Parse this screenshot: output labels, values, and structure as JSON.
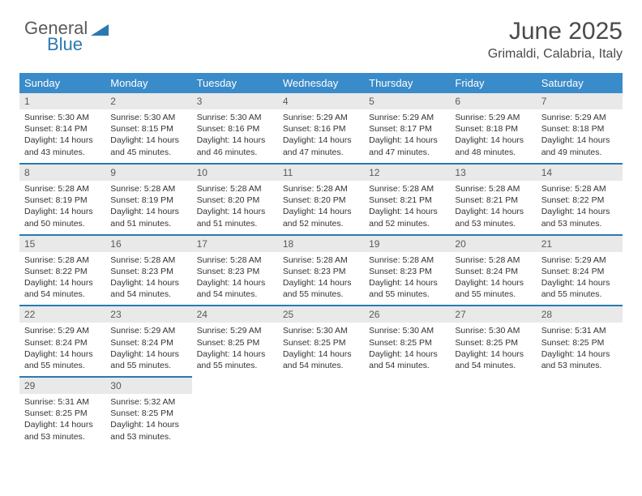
{
  "brand": {
    "part1": "General",
    "part2": "Blue"
  },
  "title": "June 2025",
  "location": "Grimaldi, Calabria, Italy",
  "colors": {
    "header_bg": "#3a8bc9",
    "accent": "#2a7ab0",
    "daynum_bg": "#e9e9e9",
    "text": "#333333"
  },
  "weekdays": [
    "Sunday",
    "Monday",
    "Tuesday",
    "Wednesday",
    "Thursday",
    "Friday",
    "Saturday"
  ],
  "weeks": [
    [
      {
        "n": "1",
        "sr": "5:30 AM",
        "ss": "8:14 PM",
        "dl": "14 hours and 43 minutes."
      },
      {
        "n": "2",
        "sr": "5:30 AM",
        "ss": "8:15 PM",
        "dl": "14 hours and 45 minutes."
      },
      {
        "n": "3",
        "sr": "5:30 AM",
        "ss": "8:16 PM",
        "dl": "14 hours and 46 minutes."
      },
      {
        "n": "4",
        "sr": "5:29 AM",
        "ss": "8:16 PM",
        "dl": "14 hours and 47 minutes."
      },
      {
        "n": "5",
        "sr": "5:29 AM",
        "ss": "8:17 PM",
        "dl": "14 hours and 47 minutes."
      },
      {
        "n": "6",
        "sr": "5:29 AM",
        "ss": "8:18 PM",
        "dl": "14 hours and 48 minutes."
      },
      {
        "n": "7",
        "sr": "5:29 AM",
        "ss": "8:18 PM",
        "dl": "14 hours and 49 minutes."
      }
    ],
    [
      {
        "n": "8",
        "sr": "5:28 AM",
        "ss": "8:19 PM",
        "dl": "14 hours and 50 minutes."
      },
      {
        "n": "9",
        "sr": "5:28 AM",
        "ss": "8:19 PM",
        "dl": "14 hours and 51 minutes."
      },
      {
        "n": "10",
        "sr": "5:28 AM",
        "ss": "8:20 PM",
        "dl": "14 hours and 51 minutes."
      },
      {
        "n": "11",
        "sr": "5:28 AM",
        "ss": "8:20 PM",
        "dl": "14 hours and 52 minutes."
      },
      {
        "n": "12",
        "sr": "5:28 AM",
        "ss": "8:21 PM",
        "dl": "14 hours and 52 minutes."
      },
      {
        "n": "13",
        "sr": "5:28 AM",
        "ss": "8:21 PM",
        "dl": "14 hours and 53 minutes."
      },
      {
        "n": "14",
        "sr": "5:28 AM",
        "ss": "8:22 PM",
        "dl": "14 hours and 53 minutes."
      }
    ],
    [
      {
        "n": "15",
        "sr": "5:28 AM",
        "ss": "8:22 PM",
        "dl": "14 hours and 54 minutes."
      },
      {
        "n": "16",
        "sr": "5:28 AM",
        "ss": "8:23 PM",
        "dl": "14 hours and 54 minutes."
      },
      {
        "n": "17",
        "sr": "5:28 AM",
        "ss": "8:23 PM",
        "dl": "14 hours and 54 minutes."
      },
      {
        "n": "18",
        "sr": "5:28 AM",
        "ss": "8:23 PM",
        "dl": "14 hours and 55 minutes."
      },
      {
        "n": "19",
        "sr": "5:28 AM",
        "ss": "8:23 PM",
        "dl": "14 hours and 55 minutes."
      },
      {
        "n": "20",
        "sr": "5:28 AM",
        "ss": "8:24 PM",
        "dl": "14 hours and 55 minutes."
      },
      {
        "n": "21",
        "sr": "5:29 AM",
        "ss": "8:24 PM",
        "dl": "14 hours and 55 minutes."
      }
    ],
    [
      {
        "n": "22",
        "sr": "5:29 AM",
        "ss": "8:24 PM",
        "dl": "14 hours and 55 minutes."
      },
      {
        "n": "23",
        "sr": "5:29 AM",
        "ss": "8:24 PM",
        "dl": "14 hours and 55 minutes."
      },
      {
        "n": "24",
        "sr": "5:29 AM",
        "ss": "8:25 PM",
        "dl": "14 hours and 55 minutes."
      },
      {
        "n": "25",
        "sr": "5:30 AM",
        "ss": "8:25 PM",
        "dl": "14 hours and 54 minutes."
      },
      {
        "n": "26",
        "sr": "5:30 AM",
        "ss": "8:25 PM",
        "dl": "14 hours and 54 minutes."
      },
      {
        "n": "27",
        "sr": "5:30 AM",
        "ss": "8:25 PM",
        "dl": "14 hours and 54 minutes."
      },
      {
        "n": "28",
        "sr": "5:31 AM",
        "ss": "8:25 PM",
        "dl": "14 hours and 53 minutes."
      }
    ],
    [
      {
        "n": "29",
        "sr": "5:31 AM",
        "ss": "8:25 PM",
        "dl": "14 hours and 53 minutes."
      },
      {
        "n": "30",
        "sr": "5:32 AM",
        "ss": "8:25 PM",
        "dl": "14 hours and 53 minutes."
      },
      null,
      null,
      null,
      null,
      null
    ]
  ],
  "labels": {
    "sunrise": "Sunrise:",
    "sunset": "Sunset:",
    "daylight": "Daylight:"
  }
}
